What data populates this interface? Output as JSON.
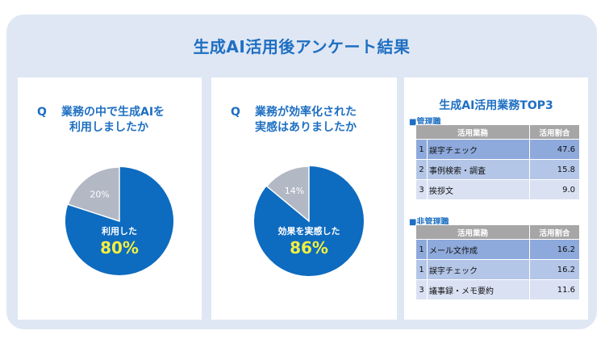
{
  "title": "生成AI活用後アンケート結果",
  "survey": [
    {
      "q_mark": "Q",
      "question_line1": "業務の中で生成AIを",
      "question_line2": "利用しましたか",
      "yes_label": "利用した",
      "yes_pct_text": "80%",
      "no_pct_text": "20%"
    },
    {
      "q_mark": "Q",
      "question_line1": "業務が効率化された",
      "question_line2": "実感はありましたか",
      "yes_label": "効果を実感した",
      "yes_pct_text": "86%",
      "no_pct_text": "14%"
    }
  ],
  "top3": {
    "title": "生成AI活用業務TOP3",
    "col_task": "活用業務",
    "col_ratio": "活用割合",
    "sections": [
      {
        "label": "■管理職",
        "rows": [
          {
            "rank": "1",
            "task": "誤字チェック",
            "value": "47.6"
          },
          {
            "rank": "2",
            "task": "事例検索・調査",
            "value": "15.8"
          },
          {
            "rank": "3",
            "task": "挨拶文",
            "value": "9.0"
          }
        ]
      },
      {
        "label": "■非管理職",
        "rows": [
          {
            "rank": "1",
            "task": "メール文作成",
            "value": "16.2"
          },
          {
            "rank": "1",
            "task": "誤字チェック",
            "value": "16.2"
          },
          {
            "rank": "3",
            "task": "議事録・メモ要約",
            "value": "11.6"
          }
        ]
      }
    ]
  },
  "colors": {
    "accent": "#1e6fc2",
    "pie_yes": "#0d6bc0",
    "pie_no": "#b2b8c4",
    "pct_highlight": "#f2f03d"
  },
  "chart_data": [
    {
      "type": "pie",
      "title": "業務の中で生成AIを利用しましたか",
      "categories": [
        "利用した",
        ""
      ],
      "values": [
        80,
        20
      ],
      "colors": [
        "#0d6bc0",
        "#b2b8c4"
      ]
    },
    {
      "type": "pie",
      "title": "業務が効率化された実感はありましたか",
      "categories": [
        "効果を実感した",
        ""
      ],
      "values": [
        86,
        14
      ],
      "colors": [
        "#0d6bc0",
        "#b2b8c4"
      ]
    }
  ]
}
